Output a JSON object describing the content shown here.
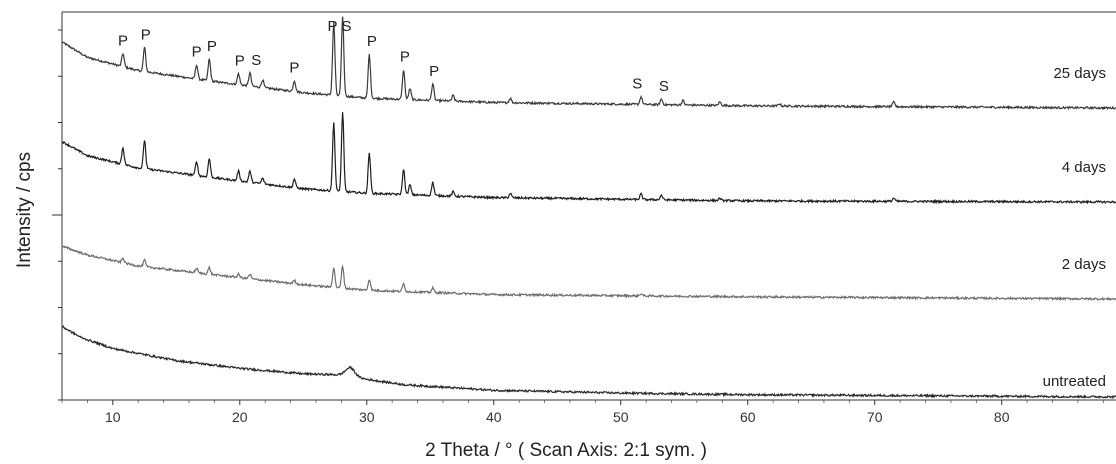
{
  "chart_data": {
    "type": "line",
    "title": "",
    "xlabel": "2 Theta / °   ( Scan Axis: 2:1 sym. )",
    "ylabel": "Intensity / cps",
    "xlim": [
      6,
      89
    ],
    "x_ticks": [
      10,
      20,
      30,
      40,
      50,
      60,
      70,
      80
    ],
    "grid": false,
    "legend": "none",
    "y_tick_count": 8,
    "series": [
      {
        "name": "25 days",
        "color": "#3a3a3a",
        "offset": 3,
        "baseline": [
          [
            6,
            0.6
          ],
          [
            8,
            0.46
          ],
          [
            12,
            0.34
          ],
          [
            18,
            0.24
          ],
          [
            25,
            0.14
          ],
          [
            30,
            0.09
          ],
          [
            40,
            0.05
          ],
          [
            60,
            0.02
          ],
          [
            89,
            0.0
          ]
        ],
        "peaks": [
          [
            10.8,
            0.12
          ],
          [
            12.5,
            0.22
          ],
          [
            16.6,
            0.13
          ],
          [
            17.6,
            0.2
          ],
          [
            19.9,
            0.1
          ],
          [
            20.8,
            0.12
          ],
          [
            21.8,
            0.07
          ],
          [
            24.3,
            0.1
          ],
          [
            27.4,
            0.66
          ],
          [
            28.1,
            0.72
          ],
          [
            30.2,
            0.4
          ],
          [
            32.9,
            0.27
          ],
          [
            33.4,
            0.1
          ],
          [
            35.2,
            0.15
          ],
          [
            36.8,
            0.05
          ],
          [
            41.3,
            0.04
          ],
          [
            51.6,
            0.07
          ],
          [
            53.2,
            0.05
          ],
          [
            54.9,
            0.04
          ],
          [
            57.8,
            0.03
          ],
          [
            62.5,
            0.02
          ],
          [
            71.5,
            0.04
          ]
        ]
      },
      {
        "name": "4 days",
        "color": "#1e1e1e",
        "offset": 2,
        "baseline": [
          [
            6,
            0.55
          ],
          [
            8,
            0.42
          ],
          [
            12,
            0.31
          ],
          [
            18,
            0.22
          ],
          [
            25,
            0.12
          ],
          [
            30,
            0.08
          ],
          [
            40,
            0.04
          ],
          [
            60,
            0.01
          ],
          [
            89,
            0.0
          ]
        ],
        "peaks": [
          [
            10.8,
            0.15
          ],
          [
            12.5,
            0.26
          ],
          [
            16.6,
            0.13
          ],
          [
            17.6,
            0.17
          ],
          [
            19.9,
            0.09
          ],
          [
            20.8,
            0.1
          ],
          [
            21.8,
            0.05
          ],
          [
            24.3,
            0.08
          ],
          [
            27.4,
            0.62
          ],
          [
            28.1,
            0.72
          ],
          [
            30.2,
            0.37
          ],
          [
            32.9,
            0.23
          ],
          [
            33.4,
            0.09
          ],
          [
            35.2,
            0.12
          ],
          [
            36.8,
            0.04
          ],
          [
            41.3,
            0.04
          ],
          [
            51.6,
            0.05
          ],
          [
            53.2,
            0.04
          ],
          [
            57.8,
            0.02
          ],
          [
            71.5,
            0.03
          ]
        ]
      },
      {
        "name": "2 days",
        "color": "#6e6e6e",
        "offset": 1,
        "baseline": [
          [
            6,
            0.48
          ],
          [
            8,
            0.4
          ],
          [
            12,
            0.3
          ],
          [
            18,
            0.22
          ],
          [
            25,
            0.13
          ],
          [
            30,
            0.08
          ],
          [
            40,
            0.04
          ],
          [
            60,
            0.02
          ],
          [
            89,
            0.0
          ]
        ],
        "peaks": [
          [
            10.8,
            0.04
          ],
          [
            12.5,
            0.06
          ],
          [
            16.6,
            0.04
          ],
          [
            17.6,
            0.06
          ],
          [
            19.9,
            0.03
          ],
          [
            20.8,
            0.04
          ],
          [
            24.3,
            0.03
          ],
          [
            27.4,
            0.18
          ],
          [
            28.1,
            0.2
          ],
          [
            30.2,
            0.1
          ],
          [
            32.9,
            0.07
          ],
          [
            35.2,
            0.04
          ],
          [
            51.6,
            0.02
          ]
        ]
      },
      {
        "name": "untreated",
        "color": "#2a2a2a",
        "offset": 0,
        "baseline": [
          [
            6,
            0.65
          ],
          [
            7.5,
            0.55
          ],
          [
            10,
            0.45
          ],
          [
            15,
            0.34
          ],
          [
            20,
            0.27
          ],
          [
            25,
            0.22
          ],
          [
            28,
            0.21
          ],
          [
            30,
            0.17
          ],
          [
            33,
            0.12
          ],
          [
            40,
            0.07
          ],
          [
            50,
            0.045
          ],
          [
            60,
            0.03
          ],
          [
            89,
            0.01
          ]
        ],
        "peaks": [
          [
            28.7,
            0.08
          ]
        ]
      }
    ],
    "annotations": [
      {
        "text": "P",
        "x": 10.8,
        "series": "25 days"
      },
      {
        "text": "P",
        "x": 12.6,
        "series": "25 days"
      },
      {
        "text": "P",
        "x": 16.6,
        "series": "25 days"
      },
      {
        "text": "P",
        "x": 17.8,
        "series": "25 days"
      },
      {
        "text": "P",
        "x": 20.0,
        "series": "25 days"
      },
      {
        "text": "S",
        "x": 21.3,
        "series": "25 days"
      },
      {
        "text": "P",
        "x": 24.3,
        "series": "25 days"
      },
      {
        "text": "P",
        "x": 27.3,
        "series": "25 days"
      },
      {
        "text": "S",
        "x": 28.4,
        "series": "25 days"
      },
      {
        "text": "P",
        "x": 30.4,
        "series": "25 days"
      },
      {
        "text": "P",
        "x": 33.0,
        "series": "25 days"
      },
      {
        "text": "P",
        "x": 35.3,
        "series": "25 days"
      },
      {
        "text": "S",
        "x": 51.3,
        "series": "25 days"
      },
      {
        "text": "S",
        "x": 53.4,
        "series": "25 days"
      }
    ]
  }
}
